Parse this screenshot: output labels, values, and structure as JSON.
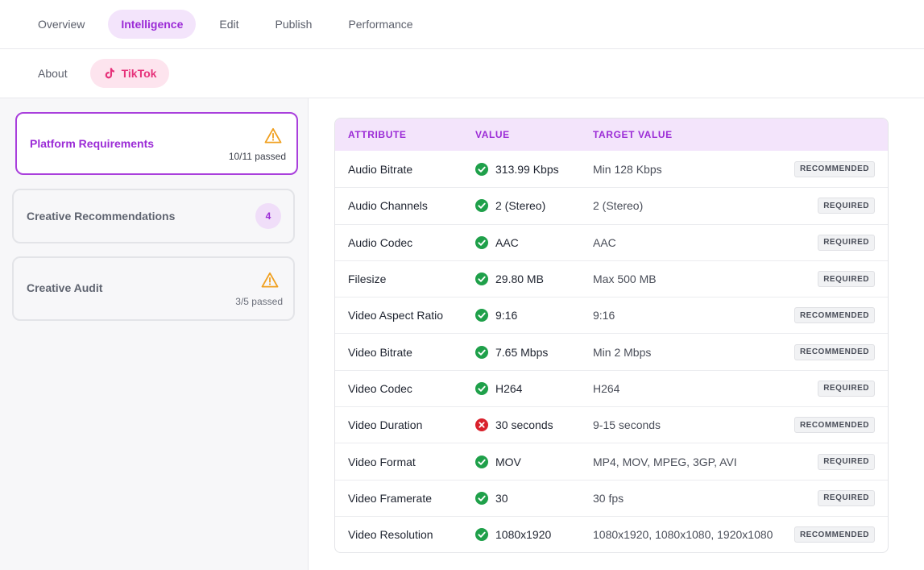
{
  "nav": {
    "tabs": [
      {
        "label": "Overview"
      },
      {
        "label": "Intelligence",
        "active": true
      },
      {
        "label": "Edit"
      },
      {
        "label": "Publish"
      },
      {
        "label": "Performance"
      }
    ]
  },
  "subnav": {
    "tabs": [
      {
        "label": "About"
      },
      {
        "label": "TikTok",
        "active": true,
        "icon": "tiktok-icon"
      }
    ]
  },
  "sidebar": {
    "cards": [
      {
        "title": "Platform Requirements",
        "status": "10/11 passed",
        "icon": "warning-icon",
        "active": true
      },
      {
        "title": "Creative Recommendations",
        "count": "4"
      },
      {
        "title": "Creative Audit",
        "status": "3/5 passed",
        "icon": "warning-icon"
      }
    ]
  },
  "table": {
    "headers": {
      "attribute": "ATTRIBUTE",
      "value": "VALUE",
      "target": "TARGET VALUE"
    },
    "rows": [
      {
        "attribute": "Audio Bitrate",
        "value": "313.99 Kbps",
        "target": "Min 128 Kbps",
        "badge": "RECOMMENDED",
        "pass": true
      },
      {
        "attribute": "Audio Channels",
        "value": "2 (Stereo)",
        "target": "2 (Stereo)",
        "badge": "REQUIRED",
        "pass": true
      },
      {
        "attribute": "Audio Codec",
        "value": "AAC",
        "target": "AAC",
        "badge": "REQUIRED",
        "pass": true
      },
      {
        "attribute": "Filesize",
        "value": "29.80 MB",
        "target": "Max 500 MB",
        "badge": "REQUIRED",
        "pass": true
      },
      {
        "attribute": "Video Aspect Ratio",
        "value": "9:16",
        "target": "9:16",
        "badge": "RECOMMENDED",
        "pass": true
      },
      {
        "attribute": "Video Bitrate",
        "value": "7.65 Mbps",
        "target": "Min 2 Mbps",
        "badge": "RECOMMENDED",
        "pass": true
      },
      {
        "attribute": "Video Codec",
        "value": "H264",
        "target": "H264",
        "badge": "REQUIRED",
        "pass": true
      },
      {
        "attribute": "Video Duration",
        "value": "30 seconds",
        "target": "9-15 seconds",
        "badge": "RECOMMENDED",
        "pass": false
      },
      {
        "attribute": "Video Format",
        "value": "MOV",
        "target": "MP4, MOV, MPEG, 3GP, AVI",
        "badge": "REQUIRED",
        "pass": true
      },
      {
        "attribute": "Video Framerate",
        "value": "30",
        "target": "30 fps",
        "badge": "REQUIRED",
        "pass": true
      },
      {
        "attribute": "Video Resolution",
        "value": "1080x1920",
        "target": "1080x1920, 1080x1080, 1920x1080",
        "badge": "RECOMMENDED",
        "pass": true
      }
    ]
  },
  "colors": {
    "accent": "#9b2bd6",
    "tiktok": "#e6327a",
    "pass": "#1fa04a",
    "fail": "#d9212c",
    "warning": "#f0a020"
  }
}
